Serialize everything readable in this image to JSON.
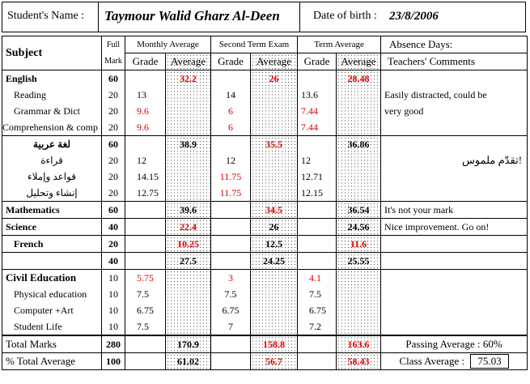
{
  "header": {
    "student_label": "Student's Name   :",
    "student_name": "Taymour Walid Gharz Al-Deen",
    "dob_label": "Date of birth :",
    "dob_value": "23/8/2006"
  },
  "columns": {
    "subject": "Subject",
    "full": "Full",
    "mark": "Mark",
    "monthly": "Monthly Average",
    "second_term": "Second Term Exam",
    "term_avg": "Term Average",
    "grade": "Grade",
    "average": "Average",
    "absence": "Absence Days:",
    "comments": "Teachers' Comments"
  },
  "rows": {
    "english": {
      "subject": "English",
      "full": "60",
      "monthly_avg": "32.2",
      "exam_avg": "26",
      "term_avg": "28.48"
    },
    "reading": {
      "subject": "Reading",
      "full": "20",
      "monthly_grade": "13",
      "exam_grade": "14",
      "term_grade": "13.6"
    },
    "grammar": {
      "subject": "Grammar & Dict",
      "full": "20",
      "monthly_grade": "9.6",
      "exam_grade": "6",
      "term_grade": "7.44"
    },
    "comprehension": {
      "subject": "Comprehension & comp",
      "full": "20",
      "monthly_grade": "9.6",
      "exam_grade": "6",
      "term_grade": "7.44"
    },
    "arabic": {
      "subject": "لغة عربية",
      "full": "60",
      "monthly_avg": "38.9",
      "exam_avg": "35.5",
      "term_avg": "36.86"
    },
    "arabic_reading": {
      "subject": "قراءة",
      "full": "20",
      "monthly_grade": "12",
      "exam_grade": "12",
      "term_grade": "12"
    },
    "arabic_grammar": {
      "subject": "قواعد وإملاء",
      "full": "20",
      "monthly_grade": "14.15",
      "exam_grade": "11.75",
      "term_grade": "12.71"
    },
    "arabic_essay": {
      "subject": "إنشاء وتحليل",
      "full": "20",
      "monthly_grade": "12.75",
      "exam_grade": "11.75",
      "term_grade": "12.15"
    },
    "math": {
      "subject": "Mathematics",
      "full": "60",
      "monthly_avg": "39.6",
      "exam_avg": "34.5",
      "term_avg": "36.54"
    },
    "science": {
      "subject": "Science",
      "full": "40",
      "monthly_avg": "22.4",
      "exam_avg": "26",
      "term_avg": "24.56"
    },
    "french": {
      "subject": "French",
      "full": "20",
      "monthly_avg": "10.25",
      "exam_avg": "12.5",
      "term_avg": "11.6"
    },
    "subtotal": {
      "full": "40",
      "monthly_avg": "27.5",
      "exam_avg": "24.25",
      "term_avg": "25.55"
    },
    "civil": {
      "subject": "Civil Education",
      "full": "10",
      "monthly_grade": "5.75",
      "exam_grade": "3",
      "term_grade": "4.1"
    },
    "physical": {
      "subject": "Physical education",
      "full": "10",
      "monthly_grade": "7.5",
      "exam_grade": "7.5",
      "term_grade": "7.5"
    },
    "computer": {
      "subject": "Computer +Art",
      "full": "10",
      "monthly_grade": "6.75",
      "exam_grade": "6.75",
      "term_grade": "6.75"
    },
    "student_life": {
      "subject": "Student Life",
      "full": "10",
      "monthly_grade": "7.5",
      "exam_grade": "7",
      "term_grade": "7.2"
    },
    "total": {
      "subject": "Total Marks",
      "full": "280",
      "monthly_avg": "170.9",
      "exam_avg": "158.8",
      "term_avg": "163.6"
    },
    "percent": {
      "subject": "% Total Average",
      "full": "100",
      "monthly_avg": "61.02",
      "exam_avg": "56.7",
      "term_avg": "58.43"
    }
  },
  "comments": {
    "english_1": "Easily distracted, could be",
    "english_2": "very good",
    "arabic": "تقدّم ملموس!",
    "math": "It's not your mark",
    "science": "Nice improvement. Go on!"
  },
  "footer": {
    "passing_average": "Passing Average : 60%",
    "class_average_label": "Class Average :",
    "class_average_value": "75.03"
  },
  "colors": {
    "red": "#e00000"
  }
}
